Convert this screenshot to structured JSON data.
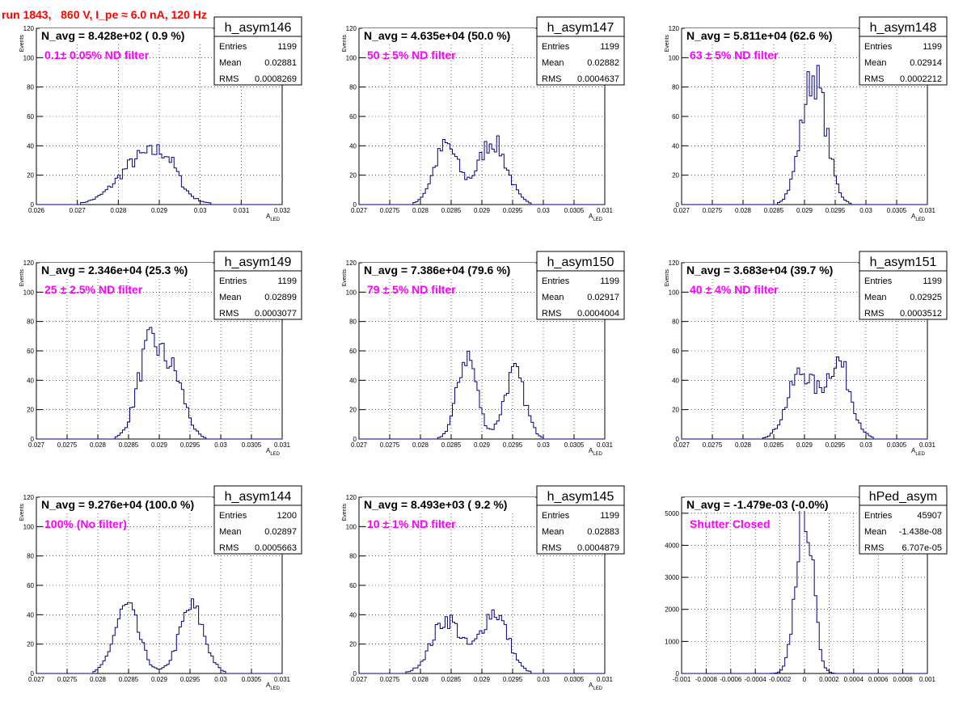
{
  "page_title": "run 1843,   860 V, I_pe ≈ 6.0 nA, 120 Hz",
  "colors": {
    "histogram": "#000080",
    "annotation": "#ff00ff",
    "title": "#ff0000"
  },
  "chart_data": [
    {
      "type": "histogram",
      "name": "h_asym146",
      "navg": "N_avg = 8.428e+02 ( 0.9 %)",
      "filter": "0.1± 0.05% ND filter",
      "stats": {
        "entries_label": "Entries",
        "entries": "1199",
        "mean_label": "Mean",
        "mean": "0.02881",
        "rms_label": "RMS",
        "rms": "0.0008269"
      },
      "xlabel": "A",
      "xlabel_sub": "LED",
      "ylabel": "Events",
      "xlim": [
        0.026,
        0.032
      ],
      "ylim": [
        0,
        120
      ],
      "xticks": [
        0.026,
        0.027,
        0.028,
        0.029,
        0.03,
        0.031,
        0.032
      ],
      "xtick_labels": [
        "0.026",
        "0.027",
        "0.028",
        "0.029",
        "0.03",
        "0.031",
        "0.032"
      ],
      "yticks": [
        0,
        20,
        40,
        60,
        80,
        100,
        120
      ],
      "ytick_labels": [
        "0",
        "20",
        "40",
        "60",
        "80",
        "100",
        "120"
      ],
      "bins": [
        0.0265,
        0.0285,
        0.0293,
        0.031
      ],
      "peaks": [
        {
          "mu": 0.02865,
          "sigma": 0.0006,
          "h": 33
        },
        {
          "mu": 0.0292,
          "sigma": 0.00025,
          "h": 12
        }
      ]
    },
    {
      "type": "histogram",
      "name": "h_asym147",
      "navg": "N_avg = 4.635e+04 (50.0 %)",
      "filter": "50 ± 5% ND filter",
      "stats": {
        "entries_label": "Entries",
        "entries": "1199",
        "mean_label": "Mean",
        "mean": "0.02882",
        "rms_label": "RMS",
        "rms": "0.0004637"
      },
      "xlabel": "A",
      "xlabel_sub": "LED",
      "ylabel": "Events",
      "xlim": [
        0.027,
        0.031
      ],
      "ylim": [
        0,
        120
      ],
      "xticks": [
        0.027,
        0.0275,
        0.028,
        0.0285,
        0.029,
        0.0295,
        0.03,
        0.0305,
        0.031
      ],
      "xtick_labels": [
        "0.027",
        "0.0275",
        "0.028",
        "0.0285",
        "0.029",
        "0.0295",
        "0.03",
        "0.0305",
        "0.031"
      ],
      "yticks": [
        0,
        20,
        40,
        60,
        80,
        100,
        120
      ],
      "ytick_labels": [
        "0",
        "20",
        "40",
        "60",
        "80",
        "100",
        "120"
      ],
      "peaks": [
        {
          "mu": 0.02842,
          "sigma": 0.0002,
          "h": 40
        },
        {
          "mu": 0.02917,
          "sigma": 0.00023,
          "h": 43
        }
      ]
    },
    {
      "type": "histogram",
      "name": "h_asym148",
      "navg": "N_avg = 5.811e+04 (62.6 %)",
      "filter": "63 ± 5% ND filter",
      "stats": {
        "entries_label": "Entries",
        "entries": "1199",
        "mean_label": "Mean",
        "mean": "0.02914",
        "rms_label": "RMS",
        "rms": "0.0002212"
      },
      "xlabel": "A",
      "xlabel_sub": "LED",
      "ylabel": "Events",
      "xlim": [
        0.027,
        0.031
      ],
      "ylim": [
        0,
        120
      ],
      "xticks": [
        0.027,
        0.0275,
        0.028,
        0.0285,
        0.029,
        0.0295,
        0.03,
        0.0305,
        0.031
      ],
      "xtick_labels": [
        "0.027",
        "0.0275",
        "0.028",
        "0.0285",
        "0.029",
        "0.0295",
        "0.03",
        "0.0305",
        "0.031"
      ],
      "yticks": [
        0,
        20,
        40,
        60,
        80,
        100,
        120
      ],
      "ytick_labels": [
        "0",
        "20",
        "40",
        "60",
        "80",
        "100",
        "120"
      ],
      "peaks": [
        {
          "mu": 0.02915,
          "sigma": 0.0002,
          "h": 88
        }
      ]
    },
    {
      "type": "histogram",
      "name": "h_asym149",
      "navg": "N_avg = 2.346e+04 (25.3 %)",
      "filter": "25 ± 2.5% ND filter",
      "stats": {
        "entries_label": "Entries",
        "entries": "1199",
        "mean_label": "Mean",
        "mean": "0.02899",
        "rms_label": "RMS",
        "rms": "0.0003077"
      },
      "xlabel": "A",
      "xlabel_sub": "LED",
      "ylabel": "Events",
      "xlim": [
        0.027,
        0.031
      ],
      "ylim": [
        0,
        120
      ],
      "xticks": [
        0.027,
        0.0275,
        0.028,
        0.0285,
        0.029,
        0.0295,
        0.03,
        0.0305,
        0.031
      ],
      "xtick_labels": [
        "0.027",
        "0.0275",
        "0.028",
        "0.0285",
        "0.029",
        "0.0295",
        "0.03",
        "0.0305",
        "0.031"
      ],
      "yticks": [
        0,
        20,
        40,
        60,
        80,
        100,
        120
      ],
      "ytick_labels": [
        "0",
        "20",
        "40",
        "60",
        "80",
        "100",
        "120"
      ],
      "peaks": [
        {
          "mu": 0.02885,
          "sigma": 0.0002,
          "h": 62
        },
        {
          "mu": 0.02925,
          "sigma": 0.00018,
          "h": 38
        }
      ]
    },
    {
      "type": "histogram",
      "name": "h_asym150",
      "navg": "N_avg = 7.386e+04 (79.6 %)",
      "filter": "79 ± 5% ND filter",
      "stats": {
        "entries_label": "Entries",
        "entries": "1199",
        "mean_label": "Mean",
        "mean": "0.02917",
        "rms_label": "RMS",
        "rms": "0.0004004"
      },
      "xlabel": "A",
      "xlabel_sub": "LED",
      "ylabel": "Events",
      "xlim": [
        0.027,
        0.031
      ],
      "ylim": [
        0,
        120
      ],
      "xticks": [
        0.027,
        0.0275,
        0.028,
        0.0285,
        0.029,
        0.0295,
        0.03,
        0.0305,
        0.031
      ],
      "xtick_labels": [
        "0.027",
        "0.0275",
        "0.028",
        "0.0285",
        "0.029",
        "0.0295",
        "0.03",
        "0.0305",
        "0.031"
      ],
      "yticks": [
        0,
        20,
        40,
        60,
        80,
        100,
        120
      ],
      "ytick_labels": [
        "0",
        "20",
        "40",
        "60",
        "80",
        "100",
        "120"
      ],
      "peaks": [
        {
          "mu": 0.02876,
          "sigma": 0.00016,
          "h": 57
        },
        {
          "mu": 0.02953,
          "sigma": 0.00017,
          "h": 45
        }
      ]
    },
    {
      "type": "histogram",
      "name": "h_asym151",
      "navg": "N_avg = 3.683e+04 (39.7 %)",
      "filter": "40 ± 4% ND filter",
      "stats": {
        "entries_label": "Entries",
        "entries": "1199",
        "mean_label": "Mean",
        "mean": "0.02925",
        "rms_label": "RMS",
        "rms": "0.0003512"
      },
      "xlabel": "A",
      "xlabel_sub": "LED",
      "ylabel": "Events",
      "xlim": [
        0.027,
        0.031
      ],
      "ylim": [
        0,
        120
      ],
      "xticks": [
        0.027,
        0.0275,
        0.028,
        0.0285,
        0.029,
        0.0295,
        0.03,
        0.0305,
        0.031
      ],
      "xtick_labels": [
        "0.027",
        "0.0275",
        "0.028",
        "0.0285",
        "0.029",
        "0.0295",
        "0.03",
        "0.0305",
        "0.031"
      ],
      "yticks": [
        0,
        20,
        40,
        60,
        80,
        100,
        120
      ],
      "ytick_labels": [
        "0",
        "20",
        "40",
        "60",
        "80",
        "100",
        "120"
      ],
      "peaks": [
        {
          "mu": 0.02895,
          "sigma": 0.00022,
          "h": 45
        },
        {
          "mu": 0.02955,
          "sigma": 0.0002,
          "h": 52
        }
      ]
    },
    {
      "type": "histogram",
      "name": "h_asym144",
      "navg": "N_avg = 9.276e+04 (100.0 %)",
      "filter": "100% (No filter)",
      "stats": {
        "entries_label": "Entries",
        "entries": "1200",
        "mean_label": "Mean",
        "mean": "0.02897",
        "rms_label": "RMS",
        "rms": "0.0005663"
      },
      "xlabel": "A",
      "xlabel_sub": "LED",
      "ylabel": "Events",
      "xlim": [
        0.027,
        0.031
      ],
      "ylim": [
        0,
        120
      ],
      "xticks": [
        0.027,
        0.0275,
        0.028,
        0.0285,
        0.029,
        0.0295,
        0.03,
        0.0305,
        0.031
      ],
      "xtick_labels": [
        "0.027",
        "0.0275",
        "0.028",
        "0.0285",
        "0.029",
        "0.0295",
        "0.03",
        "0.0305",
        "0.031"
      ],
      "yticks": [
        0,
        20,
        40,
        60,
        80,
        100,
        120
      ],
      "ytick_labels": [
        "0",
        "20",
        "40",
        "60",
        "80",
        "100",
        "120"
      ],
      "peaks": [
        {
          "mu": 0.02847,
          "sigma": 0.0002,
          "h": 45
        },
        {
          "mu": 0.02953,
          "sigma": 0.0002,
          "h": 45
        }
      ]
    },
    {
      "type": "histogram",
      "name": "h_asym145",
      "navg": "N_avg = 8.493e+03 ( 9.2 %)",
      "filter": "10 ± 1% ND filter",
      "stats": {
        "entries_label": "Entries",
        "entries": "1199",
        "mean_label": "Mean",
        "mean": "0.02883",
        "rms_label": "RMS",
        "rms": "0.0004879"
      },
      "xlabel": "A",
      "xlabel_sub": "LED",
      "ylabel": "Events",
      "xlim": [
        0.027,
        0.031
      ],
      "ylim": [
        0,
        120
      ],
      "xticks": [
        0.027,
        0.0275,
        0.028,
        0.0285,
        0.029,
        0.0295,
        0.03,
        0.0305,
        0.031
      ],
      "xtick_labels": [
        "0.027",
        "0.0275",
        "0.028",
        "0.0285",
        "0.029",
        "0.0295",
        "0.03",
        "0.0305",
        "0.031"
      ],
      "yticks": [
        0,
        20,
        40,
        60,
        80,
        100,
        120
      ],
      "ytick_labels": [
        "0",
        "20",
        "40",
        "60",
        "80",
        "100",
        "120"
      ],
      "peaks": [
        {
          "mu": 0.02843,
          "sigma": 0.00024,
          "h": 37
        },
        {
          "mu": 0.0292,
          "sigma": 0.00022,
          "h": 42
        }
      ]
    },
    {
      "type": "histogram",
      "name": "hPed_asym",
      "navg": "N_avg = -1.479e-03 (-0.0%)",
      "filter": "Shutter Closed",
      "stats": {
        "entries_label": "Entries",
        "entries": "45907",
        "mean_label": "Mean",
        "mean": "-1.438e-08",
        "rms_label": "RMS",
        "rms": "6.707e-05"
      },
      "xlabel": "",
      "xlabel_sub": "",
      "ylabel": "",
      "xlim": [
        -0.001,
        0.001
      ],
      "ylim": [
        0,
        5500
      ],
      "xticks": [
        -0.001,
        -0.0008,
        -0.0006,
        -0.0004,
        -0.0002,
        0,
        0.0002,
        0.0004,
        0.0006,
        0.0008,
        0.001
      ],
      "xtick_labels": [
        "-0.001",
        "-0.0008",
        "-0.0006",
        "-0.0004",
        "-0.0002",
        "0",
        "0.0002",
        "0.0004",
        "0.0006",
        "0.0008",
        "0.001"
      ],
      "yticks": [
        0,
        1000,
        2000,
        3000,
        4000,
        5000
      ],
      "ytick_labels": [
        "0",
        "1000",
        "2000",
        "3000",
        "4000",
        "5000"
      ],
      "peaks": [
        {
          "mu": 0.0,
          "sigma": 6.7e-05,
          "h": 5300
        }
      ]
    }
  ]
}
